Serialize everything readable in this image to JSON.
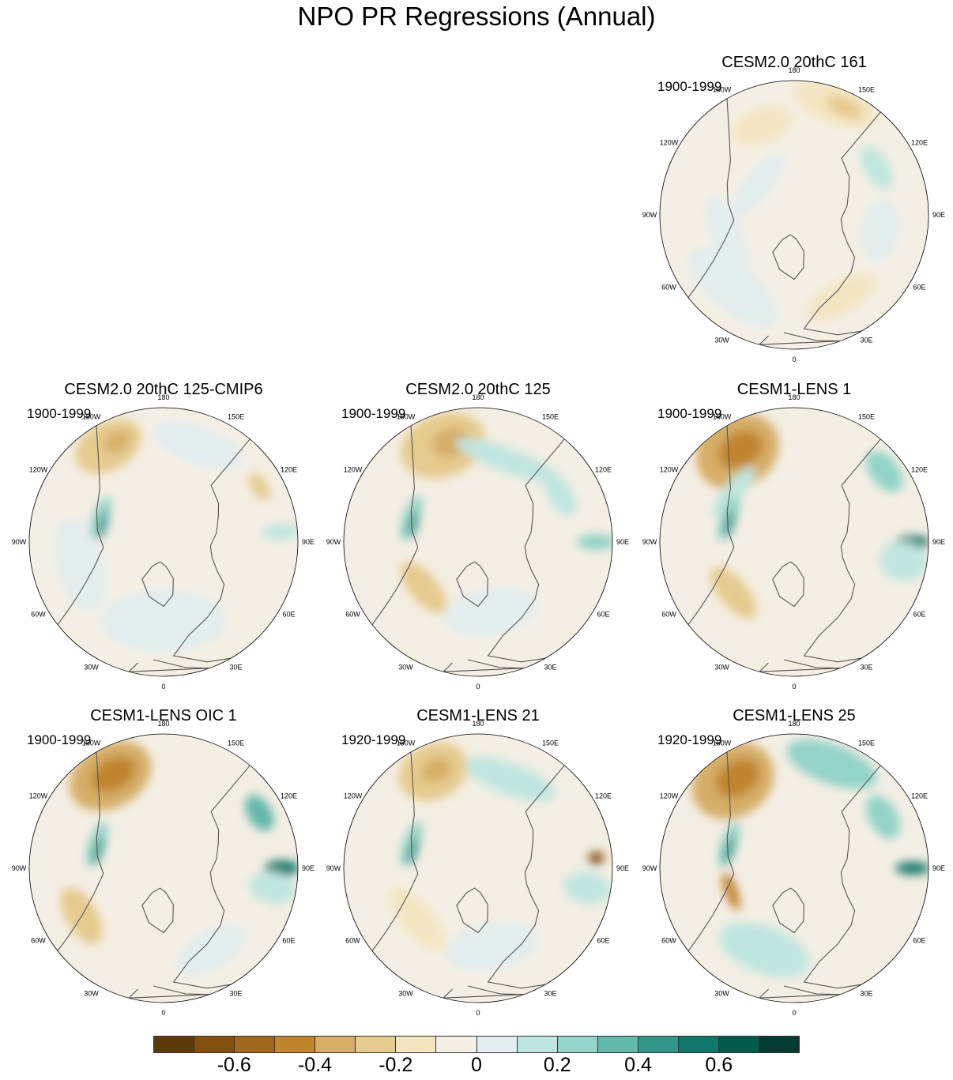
{
  "title": "NPO PR Regressions (Annual)",
  "panels": [
    {
      "title": "CESM2.0 20thC 161",
      "period": "1900-1999"
    },
    {
      "title": "CESM2.0 20thC 125-CMIP6",
      "period": "1900-1999"
    },
    {
      "title": "CESM2.0 20thC 125",
      "period": "1900-1999"
    },
    {
      "title": "CESM1-LENS 1",
      "period": "1900-1999"
    },
    {
      "title": "CESM1-LENS OIC 1",
      "period": "1900-1999"
    },
    {
      "title": "CESM1-LENS 21",
      "period": "1920-1999"
    },
    {
      "title": "CESM1-LENS 25",
      "period": "1920-1999"
    }
  ],
  "longitude_labels": [
    "180",
    "150E",
    "120E",
    "90E",
    "60E",
    "30E",
    "0",
    "30W",
    "60W",
    "90W",
    "120W",
    "150W"
  ],
  "colorbar": {
    "labels": [
      "-0.6",
      "-0.4",
      "-0.2",
      "0",
      "0.2",
      "0.4",
      "0.6"
    ],
    "colors": [
      "#5c3a0c",
      "#84500f",
      "#a2671e",
      "#c1842f",
      "#d6ae67",
      "#e6cb8e",
      "#f4e6c2",
      "#f5f0e5",
      "#e3eeee",
      "#bfe6df",
      "#93d3c8",
      "#62b8aa",
      "#34958a",
      "#12766b",
      "#045a4c",
      "#023b31"
    ],
    "palette": "brown-white-teal diverging",
    "range": [
      -0.8,
      0.8
    ],
    "step": 0.1
  },
  "map": {
    "projection": "north polar stereographic",
    "land_outline_color": "#555555",
    "background_color": "#f4efe4"
  }
}
